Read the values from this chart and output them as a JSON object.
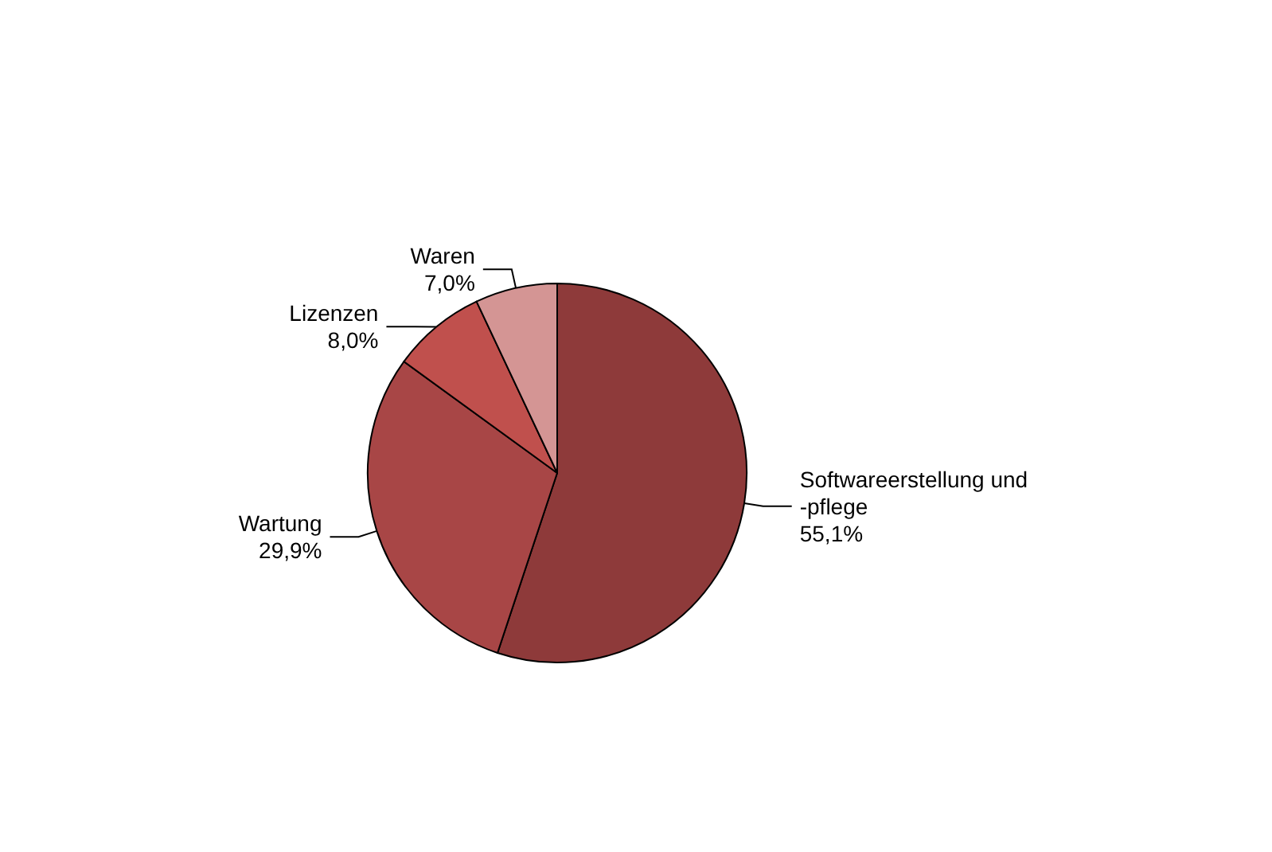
{
  "chart_data": {
    "type": "pie",
    "categories": [
      "Softwareerstellung und -pflege",
      "Wartung",
      "Lizenzen",
      "Waren"
    ],
    "values": [
      55.1,
      29.9,
      8.0,
      7.0
    ],
    "value_labels": [
      "55,1%",
      "29,9%",
      "8,0%",
      "7,0%"
    ],
    "colors": [
      "#8e3a3a",
      "#a84646",
      "#c0504d",
      "#d49594"
    ],
    "legend": false
  }
}
